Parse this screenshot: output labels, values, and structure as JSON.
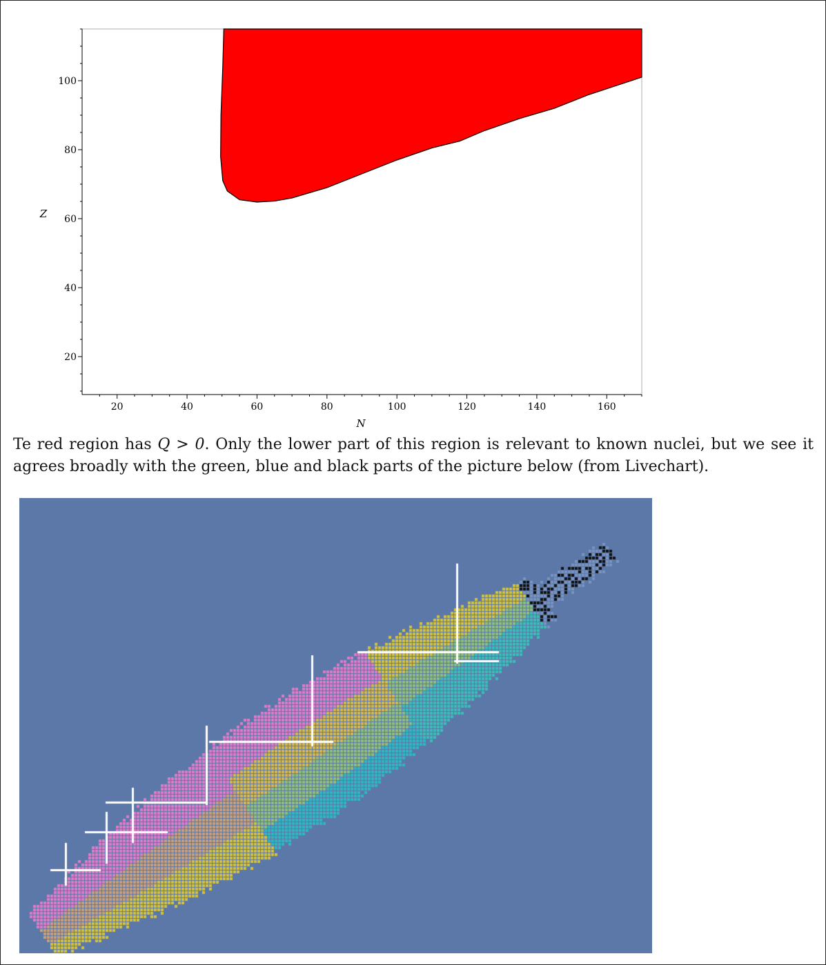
{
  "figure": {
    "chart_data": {
      "type": "area",
      "title": "",
      "xlabel": "N",
      "ylabel": "Z",
      "xlim": [
        10,
        170
      ],
      "ylim": [
        9,
        115
      ],
      "xticks": [
        20,
        40,
        60,
        80,
        100,
        120,
        140,
        160
      ],
      "yticks": [
        20,
        40,
        60,
        80,
        100
      ],
      "grid": false,
      "region": {
        "name": "",
        "color": "#ff0000",
        "boundary": [
          {
            "x": 50.5,
            "y": 115
          },
          {
            "x": 50.2,
            "y": 104
          },
          {
            "x": 49.7,
            "y": 90
          },
          {
            "x": 49.6,
            "y": 78
          },
          {
            "x": 50.2,
            "y": 71
          },
          {
            "x": 51.5,
            "y": 68
          },
          {
            "x": 55,
            "y": 65.5
          },
          {
            "x": 60,
            "y": 64.8
          },
          {
            "x": 65,
            "y": 65.1
          },
          {
            "x": 70,
            "y": 66
          },
          {
            "x": 80,
            "y": 69
          },
          {
            "x": 90,
            "y": 73
          },
          {
            "x": 100,
            "y": 77
          },
          {
            "x": 110,
            "y": 80.5
          },
          {
            "x": 118,
            "y": 82.5
          },
          {
            "x": 125,
            "y": 85.5
          },
          {
            "x": 135,
            "y": 89
          },
          {
            "x": 145,
            "y": 92
          },
          {
            "x": 155,
            "y": 96
          },
          {
            "x": 170,
            "y": 101
          },
          {
            "x": 170,
            "y": 115
          }
        ]
      }
    }
  },
  "caption": {
    "part1": "Te red region has ",
    "math": "Q > 0",
    "part2": ". Only the lower part of this region is relevant to known nuclei, but we see it agrees broadly with the green, blue and black parts of the picture below (from Livechart)."
  },
  "livechart": {
    "background": "#5b78a8",
    "colors": [
      "#e07bc8",
      "#c9a07a",
      "#d8b84a",
      "#d4c23a",
      "#8fbf7a",
      "#3bbdb8",
      "#2fb7c2",
      "#111111",
      "#ffffff",
      "#7a94c0"
    ]
  }
}
